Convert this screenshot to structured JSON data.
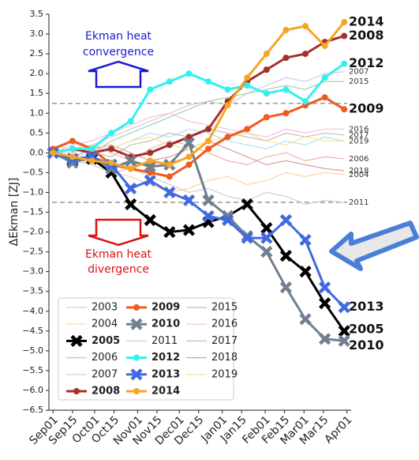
{
  "chart_data": {
    "type": "line",
    "y_label": "ΔEkman [ZJ]",
    "x": [
      0,
      14,
      28,
      42,
      56,
      70,
      84,
      98,
      112,
      126,
      140,
      154,
      168,
      182,
      196,
      210
    ],
    "xlim": [
      -3,
      215
    ],
    "xticks": [
      {
        "value": 0,
        "label": "Sep01"
      },
      {
        "value": 14,
        "label": "Sep15"
      },
      {
        "value": 30,
        "label": "Oct01"
      },
      {
        "value": 44,
        "label": "Oct15"
      },
      {
        "value": 61,
        "label": "Nov01"
      },
      {
        "value": 75,
        "label": "Nov15"
      },
      {
        "value": 91,
        "label": "Dec01"
      },
      {
        "value": 105,
        "label": "Dec15"
      },
      {
        "value": 122,
        "label": "Jan01"
      },
      {
        "value": 136,
        "label": "Jan15"
      },
      {
        "value": 153,
        "label": "Feb01"
      },
      {
        "value": 167,
        "label": "Feb15"
      },
      {
        "value": 181,
        "label": "Mar01"
      },
      {
        "value": 195,
        "label": "Mar15"
      },
      {
        "value": 212,
        "label": "Apr01"
      }
    ],
    "ylim": [
      -6.5,
      3.5
    ],
    "yticks": [
      {
        "value": 3.5,
        "label": "3.5"
      },
      {
        "value": 3,
        "label": "3.0"
      },
      {
        "value": 2.5,
        "label": "2.5"
      },
      {
        "value": 2,
        "label": "2.0"
      },
      {
        "value": 1.5,
        "label": "1.5"
      },
      {
        "value": 1,
        "label": "1.0"
      },
      {
        "value": 0.5,
        "label": "0.5"
      },
      {
        "value": 0,
        "label": "0.0"
      },
      {
        "value": -0.5,
        "label": "−0.5"
      },
      {
        "value": -1,
        "label": "−1.0"
      },
      {
        "value": -1.5,
        "label": "−1.5"
      },
      {
        "value": -2,
        "label": "−2.0"
      },
      {
        "value": -2.5,
        "label": "−2.5"
      },
      {
        "value": -3,
        "label": "−3.0"
      },
      {
        "value": -3.5,
        "label": "−3.5"
      },
      {
        "value": -4,
        "label": "−4.0"
      },
      {
        "value": -4.5,
        "label": "−4.5"
      },
      {
        "value": -5,
        "label": "−5.0"
      },
      {
        "value": -5.5,
        "label": "−5.5"
      },
      {
        "value": -6,
        "label": "−6.0"
      },
      {
        "value": -6.5,
        "label": "−6.5"
      }
    ],
    "hlines": [
      1.25,
      -1.25
    ],
    "annotations": [
      {
        "text": "Ekman heat",
        "color": "#1a1ad6"
      },
      {
        "text": "convergence",
        "color": "#1a1ad6"
      },
      {
        "text": "Ekman heat",
        "color": "#e01010"
      },
      {
        "text": "divergence",
        "color": "#e01010"
      }
    ],
    "series": [
      {
        "name": "2003",
        "color": "#aee0f5",
        "values": [
          0,
          -0.1,
          0,
          0.1,
          0.3,
          0.5,
          0.4,
          0.6,
          0.5,
          0.3,
          0.2,
          0.1,
          0.3,
          0.2,
          0.4,
          0.3
        ]
      },
      {
        "name": "2004",
        "color": "#ffd59e",
        "end_label": true,
        "values": [
          0,
          -0.1,
          -0.3,
          -0.5,
          -0.6,
          -0.8,
          -1.0,
          -0.9,
          -0.7,
          -0.6,
          -0.8,
          -0.7,
          -0.5,
          -0.6,
          -0.5,
          -0.55
        ]
      },
      {
        "name": "2005",
        "color": "#000000",
        "bold": true,
        "marker": "x",
        "end_label": true,
        "values": [
          0,
          -0.2,
          -0.15,
          -0.5,
          -1.3,
          -1.7,
          -2.0,
          -1.95,
          -1.75,
          -1.6,
          -1.3,
          -1.9,
          -2.6,
          -3.0,
          -3.8,
          -4.5
        ]
      },
      {
        "name": "2006",
        "color": "#f4b3b3",
        "end_label": true,
        "values": [
          0,
          0.1,
          0.2,
          0,
          -0.2,
          0.1,
          0.3,
          0.2,
          0,
          -0.2,
          -0.3,
          -0.1,
          0,
          -0.2,
          -0.1,
          -0.15
        ]
      },
      {
        "name": "2007",
        "color": "#d6c6e6",
        "end_label": true,
        "values": [
          0,
          0,
          0.2,
          0.4,
          0.6,
          0.8,
          1.0,
          1.2,
          1.3,
          1.2,
          1.5,
          1.7,
          1.9,
          1.8,
          2.0,
          2.05
        ]
      },
      {
        "name": "2008",
        "color": "#a3302b",
        "bold": true,
        "marker": "o",
        "end_label": true,
        "values": [
          0,
          0.1,
          0,
          0.1,
          -0.1,
          0,
          0.2,
          0.4,
          0.6,
          1.3,
          1.8,
          2.1,
          2.4,
          2.5,
          2.8,
          2.95
        ]
      },
      {
        "name": "2009",
        "color": "#f05a1e",
        "bold": true,
        "marker": "o",
        "end_label": true,
        "values": [
          0.1,
          0.3,
          0.1,
          -0.3,
          -0.4,
          -0.5,
          -0.6,
          -0.3,
          0.1,
          0.4,
          0.6,
          0.9,
          1.0,
          1.2,
          1.4,
          1.1
        ]
      },
      {
        "name": "2010",
        "color": "#708090",
        "bold": true,
        "marker": "x",
        "end_label": true,
        "values": [
          0,
          -0.25,
          -0.1,
          -0.4,
          -0.2,
          -0.35,
          -0.3,
          0.25,
          -1.2,
          -1.6,
          -2.1,
          -2.5,
          -3.4,
          -4.2,
          -4.7,
          -4.75
        ]
      },
      {
        "name": "2011",
        "color": "#d0d0d0",
        "end_label": true,
        "values": [
          0,
          -0.2,
          -0.3,
          -0.5,
          -0.4,
          -0.6,
          -0.8,
          -1.0,
          -0.9,
          -1.1,
          -1.2,
          -1.0,
          -1.1,
          -1.3,
          -1.2,
          -1.25
        ]
      },
      {
        "name": "2012",
        "color": "#33f0f0",
        "bold": true,
        "marker": "o",
        "end_label": true,
        "values": [
          0,
          0.1,
          0.1,
          0.5,
          0.8,
          1.6,
          1.8,
          2.0,
          1.8,
          1.6,
          1.7,
          1.5,
          1.6,
          1.3,
          1.9,
          2.25
        ]
      },
      {
        "name": "2013",
        "color": "#4169e1",
        "bold": true,
        "marker": "x",
        "end_label": true,
        "values": [
          0,
          -0.15,
          -0.1,
          -0.3,
          -0.9,
          -0.7,
          -1.0,
          -1.2,
          -1.6,
          -1.7,
          -2.15,
          -2.15,
          -1.7,
          -2.2,
          -3.4,
          -3.9
        ]
      },
      {
        "name": "2014",
        "color": "#f5a623",
        "bold": true,
        "marker": "o",
        "end_label": true,
        "values": [
          0,
          -0.1,
          -0.2,
          -0.25,
          -0.4,
          -0.2,
          -0.3,
          -0.1,
          0.3,
          1.2,
          1.9,
          2.5,
          3.1,
          3.2,
          2.7,
          3.3
        ]
      },
      {
        "name": "2015",
        "color": "#9fd49f",
        "end_label": true,
        "values": [
          0,
          0.1,
          0,
          0.3,
          0.5,
          0.7,
          0.9,
          1.1,
          1.3,
          1.4,
          1.5,
          1.6,
          1.7,
          1.6,
          1.8,
          1.8
        ]
      },
      {
        "name": "2016",
        "color": "#f0c0e0",
        "end_label": true,
        "values": [
          0,
          0.2,
          0.3,
          0.5,
          0.7,
          0.9,
          1.0,
          0.8,
          0.7,
          0.6,
          0.5,
          0.4,
          0.6,
          0.5,
          0.6,
          0.6
        ]
      },
      {
        "name": "2017",
        "color": "#c8bcb0",
        "end_label": true,
        "values": [
          0,
          0.1,
          0,
          -0.1,
          0.2,
          0.3,
          0.5,
          0.4,
          0.6,
          0.5,
          0.4,
          0.3,
          0.5,
          0.4,
          0.5,
          0.45
        ]
      },
      {
        "name": "2018",
        "color": "#d8a0a8",
        "end_label": true,
        "values": [
          0,
          -0.1,
          0.1,
          0.2,
          0,
          -0.2,
          -0.1,
          0.1,
          0.3,
          0.1,
          -0.1,
          -0.3,
          -0.2,
          -0.3,
          -0.4,
          -0.45
        ]
      },
      {
        "name": "2019",
        "color": "#f5e58a",
        "end_label": true,
        "values": [
          0,
          0.1,
          0.2,
          0.1,
          0.3,
          0.4,
          0.2,
          0.1,
          0.3,
          0.4,
          0.5,
          0.3,
          0.2,
          0.4,
          0.3,
          0.3
        ]
      }
    ]
  }
}
